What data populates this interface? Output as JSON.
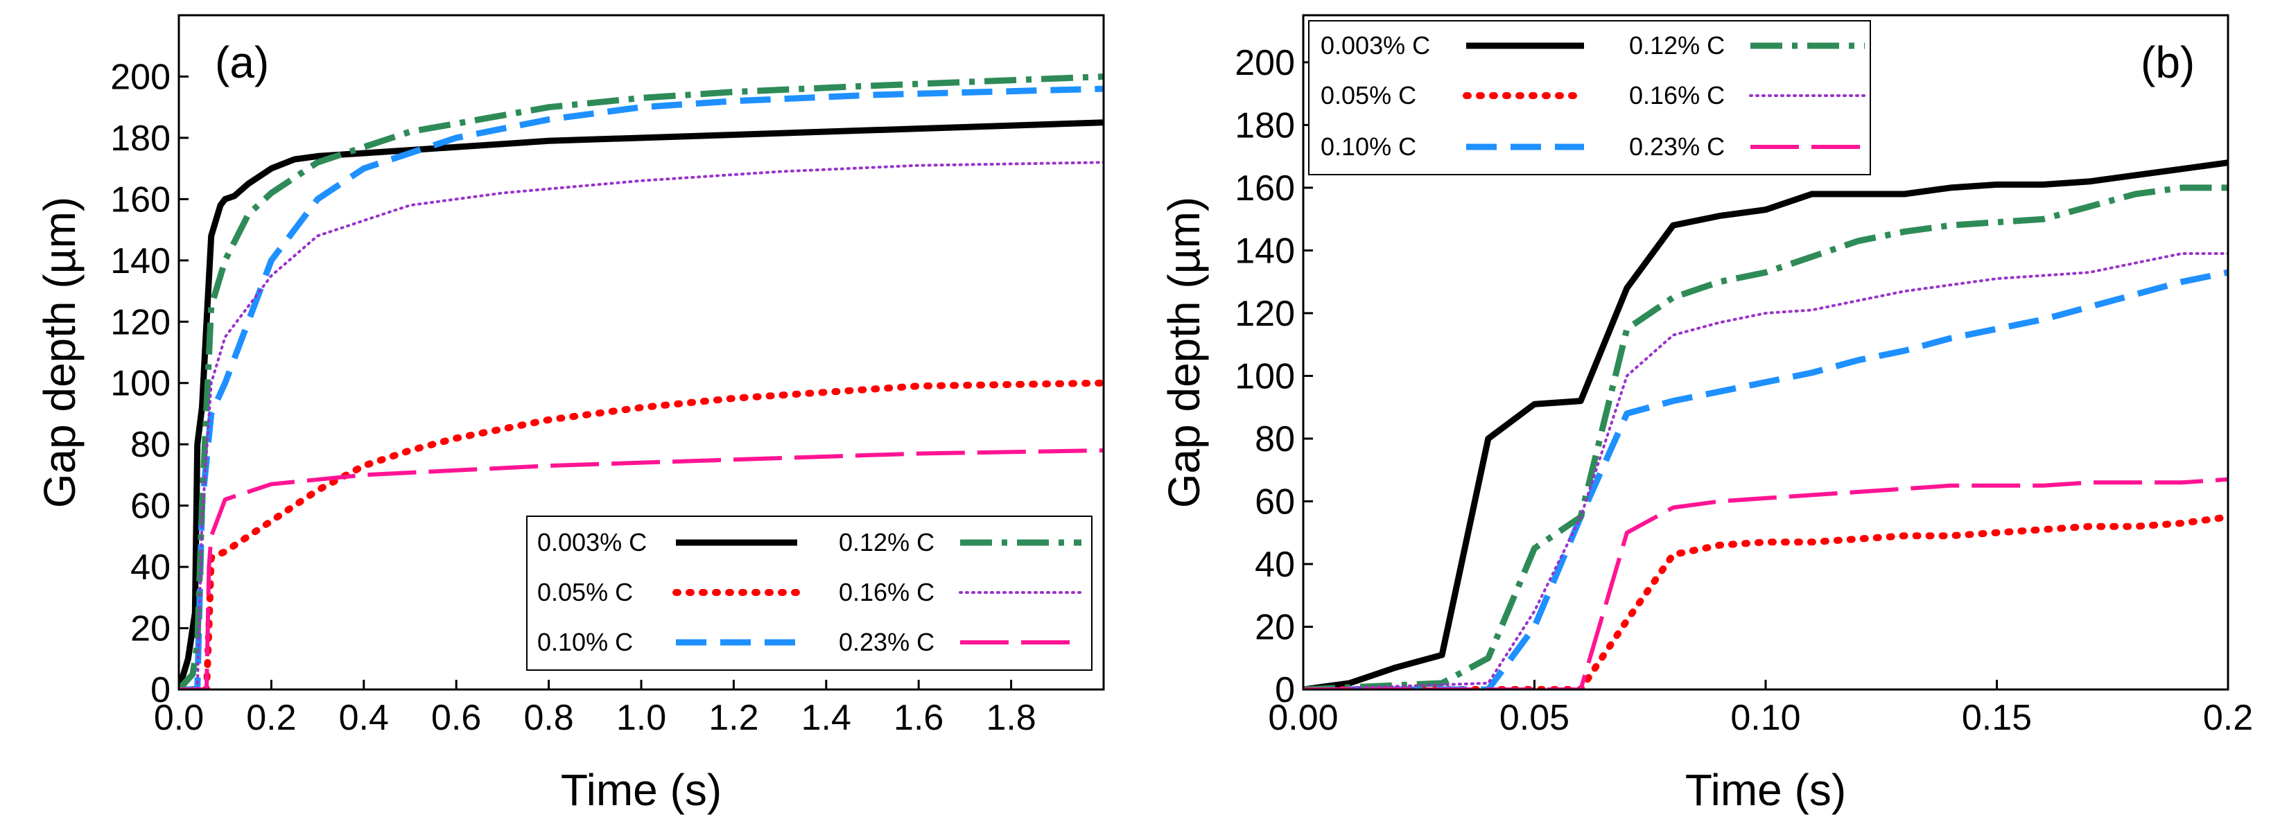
{
  "chart_data": [
    {
      "panel_label": "(a)",
      "type": "line",
      "xlabel": "Time (s)",
      "ylabel": "Gap depth (µm)",
      "xlim": [
        0,
        2.0
      ],
      "ylim": [
        0,
        220
      ],
      "xticks": [
        0.0,
        0.2,
        0.4,
        0.6,
        0.8,
        1.0,
        1.2,
        1.4,
        1.6,
        1.8
      ],
      "xtick_labels": [
        "0.0",
        "0.2",
        "0.4",
        "0.6",
        "0.8",
        "1.0",
        "1.2",
        "1.4",
        "1.6",
        "1.8"
      ],
      "yticks": [
        0,
        20,
        40,
        60,
        80,
        100,
        120,
        140,
        160,
        180,
        200
      ],
      "ytick_labels": [
        "0",
        "20",
        "40",
        "60",
        "80",
        "100",
        "120",
        "140",
        "160",
        "180",
        "200"
      ],
      "legend_position": "bottom-right",
      "series": [
        {
          "name": "0.003% C",
          "color": "#000000",
          "style": "solid",
          "x": [
            0,
            0.02,
            0.035,
            0.04,
            0.05,
            0.06,
            0.07,
            0.09,
            0.1,
            0.12,
            0.15,
            0.2,
            0.25,
            0.3,
            0.5,
            0.8,
            1.2,
            1.6,
            2.0
          ],
          "y": [
            0,
            10,
            25,
            80,
            92,
            120,
            148,
            158,
            160,
            161,
            165,
            170,
            173,
            174,
            176,
            179,
            181,
            183,
            185
          ]
        },
        {
          "name": "0.05% C",
          "color": "#ff0000",
          "style": "dotted",
          "x": [
            0,
            0.06,
            0.065,
            0.07,
            0.1,
            0.2,
            0.3,
            0.4,
            0.5,
            0.6,
            0.8,
            1.0,
            1.2,
            1.4,
            1.6,
            2.0
          ],
          "y": [
            0,
            0,
            20,
            43,
            45,
            55,
            65,
            73,
            78,
            82,
            88,
            92,
            95,
            97,
            99,
            100
          ]
        },
        {
          "name": "0.10% C",
          "color": "#1e90ff",
          "style": "dashed",
          "x": [
            0,
            0.04,
            0.05,
            0.07,
            0.1,
            0.15,
            0.2,
            0.3,
            0.4,
            0.5,
            0.6,
            0.8,
            1.0,
            1.2,
            1.5,
            2.0
          ],
          "y": [
            0,
            0,
            60,
            90,
            100,
            120,
            140,
            160,
            170,
            175,
            180,
            186,
            190,
            192,
            194,
            196
          ]
        },
        {
          "name": "0.12% C",
          "color": "#2e8b57",
          "style": "dashdot",
          "x": [
            0,
            0.03,
            0.04,
            0.05,
            0.07,
            0.1,
            0.15,
            0.2,
            0.3,
            0.5,
            0.8,
            1.0,
            1.2,
            1.5,
            2.0
          ],
          "y": [
            0,
            5,
            15,
            60,
            125,
            140,
            155,
            162,
            172,
            182,
            190,
            193,
            195,
            197,
            200
          ]
        },
        {
          "name": "0.16% C",
          "color": "#9932cc",
          "style": "dotted-fine",
          "x": [
            0,
            0.04,
            0.05,
            0.07,
            0.1,
            0.15,
            0.2,
            0.3,
            0.5,
            0.7,
            1.0,
            1.3,
            1.6,
            2.0
          ],
          "y": [
            0,
            0,
            55,
            100,
            115,
            125,
            135,
            148,
            158,
            162,
            166,
            169,
            171,
            172
          ]
        },
        {
          "name": "0.23% C",
          "color": "#ff1493",
          "style": "longdash",
          "x": [
            0,
            0.06,
            0.065,
            0.07,
            0.1,
            0.2,
            0.4,
            0.8,
            1.2,
            1.6,
            2.0
          ],
          "y": [
            0,
            0,
            40,
            50,
            62,
            67,
            70,
            73,
            75,
            77,
            78
          ]
        }
      ]
    },
    {
      "panel_label": "(b)",
      "type": "line",
      "xlabel": "Time (s)",
      "ylabel": "Gap depth (µm)",
      "xlim": [
        0,
        0.2
      ],
      "ylim": [
        0,
        215
      ],
      "xticks": [
        0.0,
        0.05,
        0.1,
        0.15,
        0.2
      ],
      "xtick_labels": [
        "0.00",
        "0.05",
        "0.10",
        "0.15",
        "0.2"
      ],
      "yticks": [
        0,
        20,
        40,
        60,
        80,
        100,
        120,
        140,
        160,
        180,
        200
      ],
      "ytick_labels": [
        "0",
        "20",
        "40",
        "60",
        "80",
        "100",
        "120",
        "140",
        "160",
        "180",
        "200"
      ],
      "legend_position": "top-left",
      "series": [
        {
          "name": "0.003% C",
          "color": "#000000",
          "style": "solid",
          "x": [
            0,
            0.01,
            0.02,
            0.03,
            0.04,
            0.05,
            0.06,
            0.07,
            0.08,
            0.09,
            0.1,
            0.11,
            0.12,
            0.13,
            0.14,
            0.15,
            0.16,
            0.17,
            0.18,
            0.19,
            0.2
          ],
          "y": [
            0,
            2,
            7,
            11,
            80,
            91,
            92,
            128,
            148,
            151,
            153,
            158,
            158,
            158,
            160,
            161,
            161,
            162,
            164,
            166,
            168
          ]
        },
        {
          "name": "0.05% C",
          "color": "#ff0000",
          "style": "dotted",
          "x": [
            0,
            0.06,
            0.07,
            0.08,
            0.09,
            0.1,
            0.11,
            0.12,
            0.13,
            0.14,
            0.15,
            0.16,
            0.17,
            0.18,
            0.19,
            0.2
          ],
          "y": [
            0,
            0,
            22,
            43,
            46,
            47,
            47,
            48,
            49,
            49,
            50,
            51,
            52,
            52,
            53,
            55
          ]
        },
        {
          "name": "0.10% C",
          "color": "#1e90ff",
          "style": "dashed",
          "x": [
            0,
            0.04,
            0.05,
            0.06,
            0.07,
            0.08,
            0.09,
            0.1,
            0.11,
            0.12,
            0.13,
            0.14,
            0.15,
            0.16,
            0.17,
            0.18,
            0.19,
            0.2
          ],
          "y": [
            0,
            0,
            20,
            55,
            88,
            92,
            95,
            98,
            101,
            105,
            108,
            112,
            115,
            118,
            122,
            126,
            130,
            133
          ]
        },
        {
          "name": "0.12% C",
          "color": "#2e8b57",
          "style": "dashdot",
          "x": [
            0,
            0.03,
            0.04,
            0.05,
            0.06,
            0.07,
            0.08,
            0.09,
            0.1,
            0.11,
            0.12,
            0.13,
            0.14,
            0.15,
            0.16,
            0.17,
            0.18,
            0.19,
            0.2
          ],
          "y": [
            0,
            2,
            10,
            45,
            55,
            115,
            125,
            130,
            133,
            138,
            143,
            146,
            148,
            149,
            150,
            154,
            158,
            160,
            160
          ]
        },
        {
          "name": "0.16% C",
          "color": "#9932cc",
          "style": "dotted-fine",
          "x": [
            0,
            0.04,
            0.05,
            0.06,
            0.07,
            0.08,
            0.09,
            0.1,
            0.11,
            0.12,
            0.13,
            0.14,
            0.15,
            0.16,
            0.17,
            0.18,
            0.19,
            0.2
          ],
          "y": [
            0,
            2,
            25,
            55,
            100,
            113,
            117,
            120,
            121,
            124,
            127,
            129,
            131,
            132,
            133,
            136,
            139,
            139
          ]
        },
        {
          "name": "0.23% C",
          "color": "#ff1493",
          "style": "longdash",
          "x": [
            0,
            0.06,
            0.07,
            0.08,
            0.09,
            0.1,
            0.11,
            0.12,
            0.13,
            0.14,
            0.15,
            0.16,
            0.17,
            0.18,
            0.19,
            0.2
          ],
          "y": [
            0,
            0,
            50,
            58,
            60,
            61,
            62,
            63,
            64,
            65,
            65,
            65,
            66,
            66,
            66,
            67
          ]
        }
      ]
    }
  ]
}
